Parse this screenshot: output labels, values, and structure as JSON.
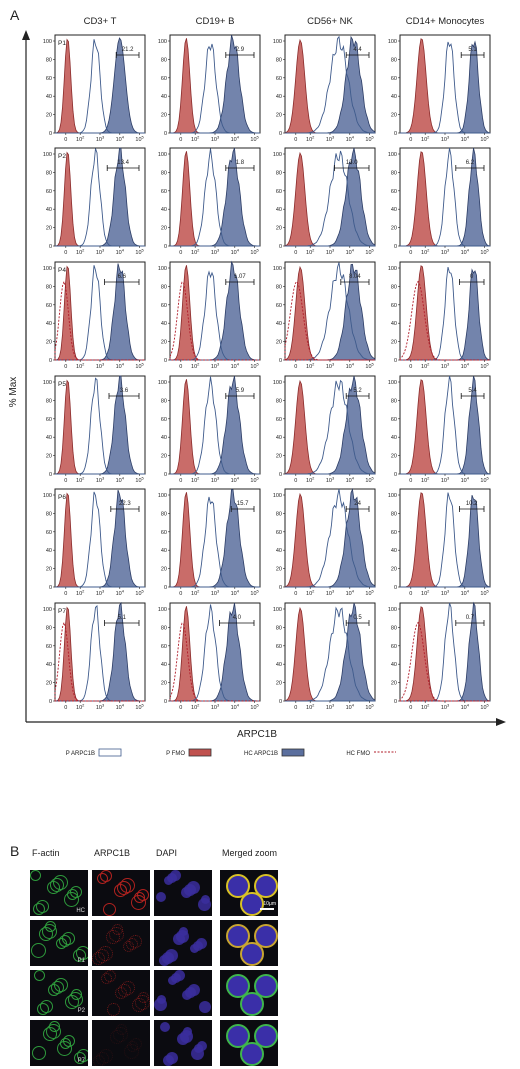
{
  "panel_a": {
    "letter": "A",
    "y_axis_label": "% Max",
    "x_axis_label": "ARPC1B",
    "columns": [
      "CD3+ T",
      "CD19+ B",
      "CD56+ NK",
      "CD14+ Monocytes"
    ],
    "rows": [
      "P1",
      "P2",
      "P4",
      "P5",
      "P6",
      "P7"
    ],
    "y_ticks": [
      "0",
      "20",
      "40",
      "60",
      "80",
      "100"
    ],
    "x_ticks": [
      "0",
      "10^2",
      "10^3",
      "10^4",
      "10^5"
    ]
  },
  "legend": [
    {
      "label": "P ARPC1B",
      "style": "open",
      "color": "#3f5b8c"
    },
    {
      "label": "P FMO",
      "style": "filled",
      "color": "#c0524f"
    },
    {
      "label": "HC ARPC1B",
      "style": "filled",
      "color": "#5b6f9e"
    },
    {
      "label": "HC FMO",
      "style": "dotted",
      "color": "#b01c2a"
    }
  ],
  "colors": {
    "p_fmo": "#c0524f",
    "hc_arpc": "#5b6f9e",
    "p_arpc": "#3f5b8c",
    "hc_fmo": "#b01c2a"
  },
  "chart_data": {
    "type": "histogram-grid",
    "x_scale": "biexponential",
    "x_range": [
      "0",
      "10^5"
    ],
    "y_range": [
      0,
      100
    ],
    "percent_gate_values": [
      [
        "21.2",
        "2.9",
        "4.4",
        "5.1"
      ],
      [
        "13.4",
        "1.8",
        "13.0",
        "6.2"
      ],
      [
        "6.6",
        "1.07",
        "8.04",
        "0"
      ],
      [
        "3.6",
        "5.9",
        "5.2",
        "5.4"
      ],
      [
        "22.3",
        "15.7",
        "24",
        "10.2"
      ],
      [
        "5.1",
        "4.0",
        "0.5",
        "0.7"
      ]
    ]
  },
  "panel_b": {
    "letter": "B",
    "columns": [
      "F-actin",
      "ARPC1B",
      "DAPI",
      "Merged zoom"
    ],
    "rows": [
      "HC",
      "P1",
      "P2",
      "P7"
    ],
    "scale_bar": "10μm"
  }
}
